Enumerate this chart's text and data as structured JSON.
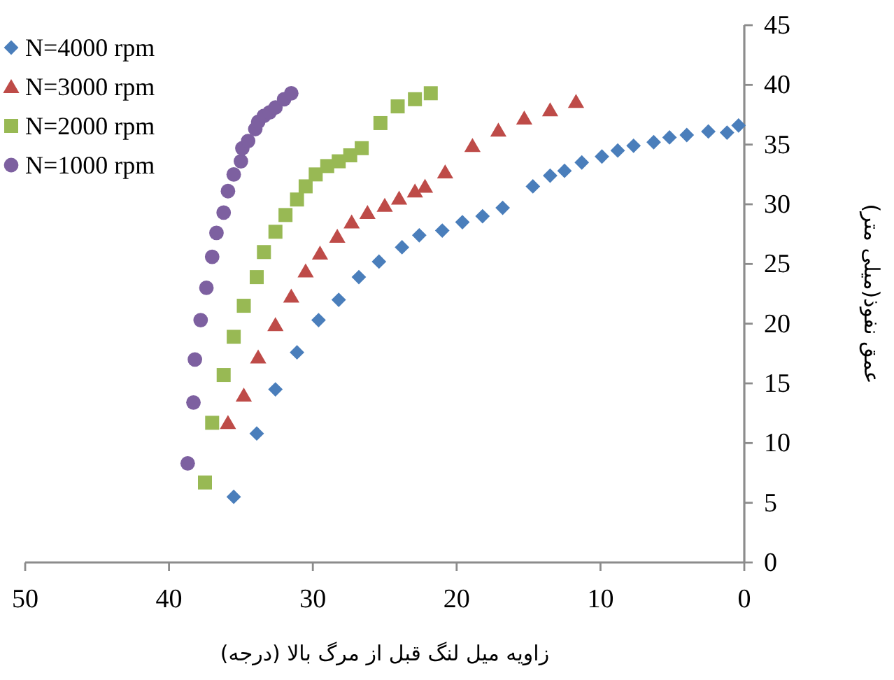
{
  "chart_data": {
    "type": "scatter",
    "xlabel": "زاویه میل لنگ قبل از مرگ بالا (درجه)",
    "ylabel": "عمق نفوذ(میلی متر)",
    "xlim": [
      50,
      0
    ],
    "xticks": [
      50,
      40,
      30,
      20,
      10,
      0
    ],
    "ylim": [
      0,
      45
    ],
    "yticks": [
      0,
      5,
      10,
      15,
      20,
      25,
      30,
      35,
      40,
      45
    ],
    "grid": false,
    "legend": "top left",
    "series": [
      {
        "name": "N=4000 rpm",
        "color": "#4a7ebb",
        "marker": "diamond",
        "x": [
          35.5,
          33.9,
          32.6,
          31.1,
          29.6,
          28.2,
          26.8,
          25.4,
          23.8,
          22.6,
          21.0,
          19.6,
          18.2,
          16.8,
          14.7,
          13.5,
          12.5,
          11.3,
          9.9,
          8.8,
          7.7,
          6.3,
          5.2,
          4.0,
          2.5,
          1.2,
          0.4
        ],
        "values": [
          5.5,
          10.8,
          14.5,
          17.6,
          20.3,
          22.0,
          23.9,
          25.2,
          26.4,
          27.4,
          27.8,
          28.5,
          29.0,
          29.7,
          31.5,
          32.4,
          32.8,
          33.5,
          34.0,
          34.5,
          34.9,
          35.2,
          35.6,
          35.8,
          36.1,
          36.0,
          36.6
        ]
      },
      {
        "name": "N=3000 rpm",
        "color": "#be4b48",
        "marker": "triangle",
        "x": [
          35.9,
          34.8,
          33.8,
          32.6,
          31.5,
          30.5,
          29.5,
          28.3,
          27.3,
          26.2,
          25.0,
          24.0,
          22.9,
          22.2,
          20.8,
          18.9,
          17.1,
          15.3,
          13.5,
          11.7
        ],
        "values": [
          11.7,
          14.0,
          17.2,
          19.9,
          22.3,
          24.4,
          25.9,
          27.3,
          28.5,
          29.3,
          29.9,
          30.5,
          31.1,
          31.5,
          32.7,
          34.9,
          36.2,
          37.2,
          37.9,
          38.6
        ]
      },
      {
        "name": "N=2000 rpm",
        "color": "#98b954",
        "marker": "square",
        "x": [
          37.5,
          37.0,
          36.2,
          35.5,
          34.8,
          33.9,
          33.4,
          32.6,
          31.9,
          31.1,
          30.5,
          29.8,
          29.0,
          28.2,
          27.4,
          26.6,
          25.3,
          24.1,
          22.9,
          21.8
        ],
        "values": [
          6.7,
          11.7,
          15.7,
          18.9,
          21.5,
          23.9,
          26.0,
          27.7,
          29.1,
          30.4,
          31.5,
          32.5,
          33.2,
          33.6,
          34.1,
          34.7,
          36.8,
          38.2,
          38.8,
          39.3
        ]
      },
      {
        "name": "N=1000 rpm",
        "color": "#7d60a0",
        "marker": "circle",
        "x": [
          38.7,
          38.3,
          38.2,
          37.8,
          37.4,
          37.0,
          36.7,
          36.2,
          35.9,
          35.5,
          35.0,
          34.9,
          34.5,
          34.0,
          33.8,
          33.4,
          33.0,
          32.6,
          32.0,
          31.5
        ],
        "values": [
          8.3,
          13.4,
          17.0,
          20.3,
          23.0,
          25.6,
          27.6,
          29.3,
          31.1,
          32.5,
          33.6,
          34.7,
          35.3,
          36.3,
          36.9,
          37.4,
          37.7,
          38.1,
          38.8,
          39.3
        ]
      }
    ]
  }
}
